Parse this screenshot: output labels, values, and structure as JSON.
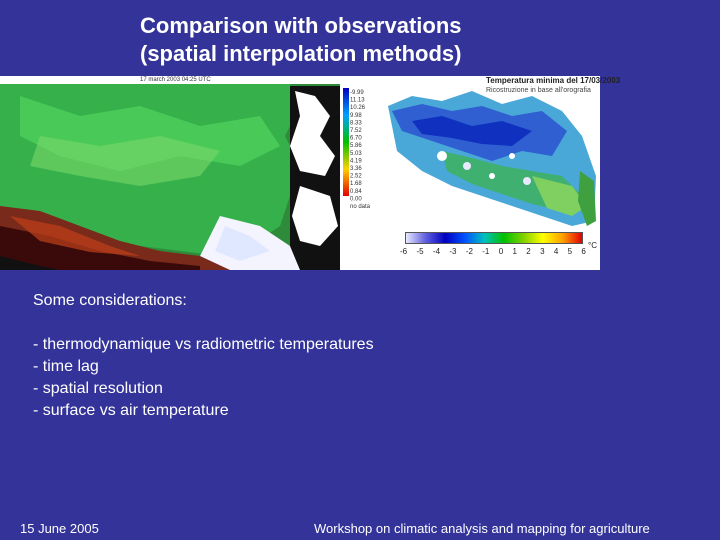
{
  "slide": {
    "title_line1": "Comparison with observations",
    "title_line2": "(spatial interpolation methods)"
  },
  "left_map": {
    "caption": "17 march 2003 04:25 UTC",
    "legend_labels": [
      "-9.99",
      "11.13",
      "10.26",
      "9.98",
      "8.33",
      "7.52",
      "6.70",
      "5.86",
      "5.03",
      "4.19",
      "3.36",
      "2.52",
      "1.68",
      "0.84",
      "0.00",
      "no data"
    ]
  },
  "right_map": {
    "title": "Temperatura minima del 17/03/2003",
    "subtitle": "Ricostruzione in base all'orografia",
    "colorbar_ticks": [
      "-6",
      "-5",
      "-4",
      "-3",
      "-2",
      "-1",
      "0",
      "1",
      "2",
      "3",
      "4",
      "5",
      "6"
    ],
    "colorbar_unit": "°C"
  },
  "body": {
    "heading": "Some considerations:",
    "bullets": [
      "- thermodynamique vs radiometric temperatures",
      "- time lag",
      "- spatial resolution",
      "- surface vs air temperature"
    ]
  },
  "footer": {
    "date": "15 June 2005",
    "workshop": "Workshop on climatic analysis and mapping for agriculture"
  },
  "colors": {
    "background": "#333399",
    "text": "#ffffff"
  }
}
